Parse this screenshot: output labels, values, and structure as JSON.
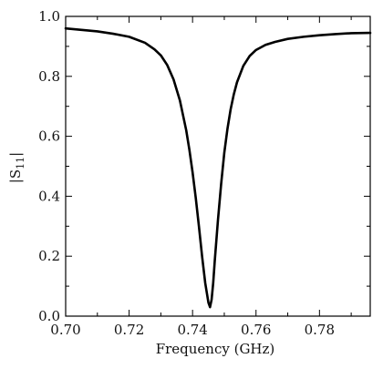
{
  "chart_data": {
    "type": "line",
    "title": "",
    "xlabel": "Frequency (GHz)",
    "ylabel_base": "|S",
    "ylabel_subscript": "11",
    "ylabel_close": "|",
    "xlim": [
      0.7,
      0.796
    ],
    "ylim": [
      0.0,
      1.0
    ],
    "x_ticks": [
      {
        "value": 0.7,
        "label": "0.70"
      },
      {
        "value": 0.72,
        "label": "0.72"
      },
      {
        "value": 0.74,
        "label": "0.74"
      },
      {
        "value": 0.76,
        "label": "0.76"
      },
      {
        "value": 0.78,
        "label": "0.78"
      }
    ],
    "x_minor_step": 0.01,
    "y_ticks": [
      {
        "value": 0.0,
        "label": "0.0"
      },
      {
        "value": 0.2,
        "label": "0.2"
      },
      {
        "value": 0.4,
        "label": "0.4"
      },
      {
        "value": 0.6,
        "label": "0.6"
      },
      {
        "value": 0.8,
        "label": "0.8"
      },
      {
        "value": 1.0,
        "label": "1.0"
      }
    ],
    "y_minor_step": 0.1,
    "grid": false,
    "legend": "none",
    "line_color": "#000000",
    "series": [
      {
        "x": [
          0.7,
          0.705,
          0.71,
          0.715,
          0.72,
          0.725,
          0.728,
          0.73,
          0.732,
          0.734,
          0.736,
          0.738,
          0.739,
          0.74,
          0.741,
          0.742,
          0.743,
          0.744,
          0.745,
          0.7455,
          0.746,
          0.7465,
          0.747,
          0.748,
          0.749,
          0.75,
          0.751,
          0.752,
          0.753,
          0.754,
          0.756,
          0.758,
          0.76,
          0.763,
          0.766,
          0.77,
          0.775,
          0.78,
          0.785,
          0.79,
          0.796
        ],
        "y": [
          0.96,
          0.955,
          0.95,
          0.942,
          0.932,
          0.912,
          0.89,
          0.87,
          0.838,
          0.79,
          0.72,
          0.62,
          0.555,
          0.48,
          0.395,
          0.3,
          0.2,
          0.11,
          0.045,
          0.03,
          0.055,
          0.11,
          0.185,
          0.32,
          0.44,
          0.545,
          0.625,
          0.69,
          0.74,
          0.78,
          0.835,
          0.868,
          0.888,
          0.905,
          0.915,
          0.925,
          0.932,
          0.937,
          0.941,
          0.944,
          0.945
        ]
      }
    ]
  }
}
